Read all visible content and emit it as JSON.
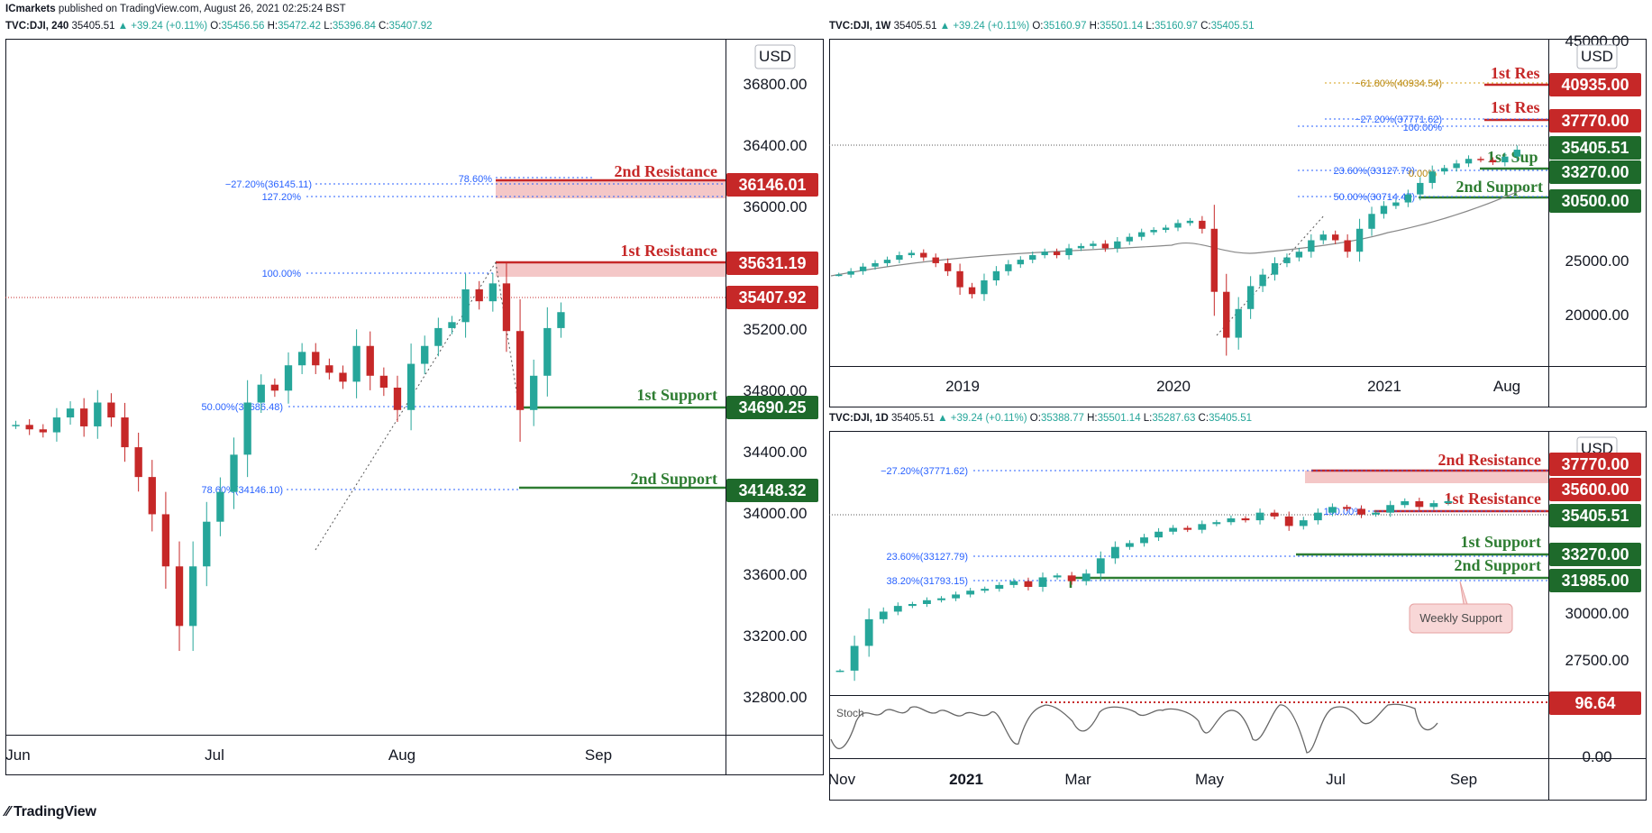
{
  "publisher": {
    "author": "ICmarkets",
    "text": "published on TradingView.com, August 26, 2021 02:25:24 BST"
  },
  "branding": {
    "logo_text": "TradingView"
  },
  "colors": {
    "up": "#26a69a",
    "down": "#c62828",
    "resistance": "#c62828",
    "support": "#2e7d32",
    "fib": "#2962ff",
    "grid": "#000000"
  },
  "panels": [
    {
      "id": "4h",
      "header": {
        "symbol": "TVC:DJI, 240",
        "price": "35405.51",
        "change": "▲ +39.24 (+0.11%)",
        "o": "35456.56",
        "h": "35472.42",
        "l": "35396.84",
        "c": "35407.92"
      },
      "currency": "USD",
      "price_ticks": [
        "36800.00",
        "36400.00",
        "36000.00",
        "35200.00",
        "34800.00",
        "34400.00",
        "34000.00",
        "33600.00",
        "33200.00",
        "32800.00"
      ],
      "time_ticks": [
        "Jun",
        "Jul",
        "Aug",
        "Sep"
      ],
      "price_tags": [
        {
          "text": "36146.01",
          "kind": "res"
        },
        {
          "text": "35631.19",
          "kind": "res"
        },
        {
          "text": "35407.92",
          "kind": "res"
        },
        {
          "text": "34690.25",
          "kind": "sup"
        },
        {
          "text": "34148.32",
          "kind": "sup"
        }
      ],
      "level_labels": [
        {
          "text": "2nd Resistance",
          "kind": "res"
        },
        {
          "text": "1st Resistance",
          "kind": "res"
        },
        {
          "text": "1st Support",
          "kind": "sup"
        },
        {
          "text": "2nd Support",
          "kind": "sup"
        }
      ],
      "fib_labels": [
        "78.60%",
        "−27.20%(36145.11)",
        "127.20%",
        "100.00%",
        "50.00%(34686.48)",
        "78.60%(34146.10)"
      ]
    },
    {
      "id": "1w",
      "header": {
        "symbol": "TVC:DJI, 1W",
        "price": "35405.51",
        "change": "▲ +39.24 (+0.11%)",
        "o": "35160.97",
        "h": "35501.14",
        "l": "35160.97",
        "c": "35405.51"
      },
      "currency": "USD",
      "price_ticks": [
        "45000.00",
        "25000.00",
        "20000.00"
      ],
      "time_ticks": [
        "2019",
        "2020",
        "2021",
        "Aug"
      ],
      "price_tags": [
        {
          "text": "40935.00",
          "kind": "res"
        },
        {
          "text": "37770.00",
          "kind": "res"
        },
        {
          "text": "35405.51",
          "kind": "sup"
        },
        {
          "text": "33270.00",
          "kind": "sup"
        },
        {
          "text": "30500.00",
          "kind": "sup"
        }
      ],
      "level_labels": [
        {
          "text": "1st Res",
          "kind": "res"
        },
        {
          "text": "1st Res",
          "kind": "res"
        },
        {
          "text": "1st Sup",
          "kind": "sup"
        },
        {
          "text": "2nd Support",
          "kind": "sup"
        }
      ],
      "fib_labels": [
        "−61.80%(40934.54)",
        "−27.20%(37771.62)",
        "100.00%",
        "23.60%(33127.79)",
        "0.00%",
        "50.00%(30714.47)"
      ]
    },
    {
      "id": "1d",
      "header": {
        "symbol": "TVC:DJI, 1D",
        "price": "35405.51",
        "change": "▲ +39.24 (+0.11%)",
        "o": "35388.77",
        "h": "35501.14",
        "l": "35287.63",
        "c": "35405.51"
      },
      "currency": "USD",
      "price_ticks": [
        "30000.00",
        "27500.00",
        "0.00"
      ],
      "time_ticks": [
        "Nov",
        "2021",
        "Mar",
        "May",
        "Jul",
        "Sep"
      ],
      "price_tags": [
        {
          "text": "37770.00",
          "kind": "res"
        },
        {
          "text": "35600.00",
          "kind": "res"
        },
        {
          "text": "35405.51",
          "kind": "sup"
        },
        {
          "text": "33270.00",
          "kind": "sup"
        },
        {
          "text": "31985.00",
          "kind": "sup"
        },
        {
          "text": "96.64",
          "kind": "res"
        }
      ],
      "level_labels": [
        {
          "text": "2nd Resistance",
          "kind": "res"
        },
        {
          "text": "1st Resistance",
          "kind": "res"
        },
        {
          "text": "1st Support",
          "kind": "sup"
        },
        {
          "text": "2nd Support",
          "kind": "sup"
        }
      ],
      "fib_labels": [
        "−27.20%(37771.62)",
        "100.00%",
        "23.60%(33127.79)",
        "38.20%(31793.15)"
      ],
      "callout": "Weekly Support",
      "indicator_label": "Stoch"
    }
  ],
  "chart_data": [
    {
      "type": "candlestick",
      "title": "TVC:DJI, 240",
      "ylim": [
        32600,
        37200
      ],
      "x_ticks": [
        "Jun",
        "Jul",
        "Aug",
        "Sep"
      ],
      "levels": [
        {
          "name": "2nd Resistance",
          "value": 36146.01
        },
        {
          "name": "1st Resistance",
          "value": 35631.19
        },
        {
          "name": "1st Support",
          "value": 34690.25
        },
        {
          "name": "2nd Support",
          "value": 34148.32
        }
      ],
      "last_price": 35407.92,
      "closes": [
        34650,
        34620,
        34600,
        34700,
        34760,
        34640,
        34800,
        34700,
        34500,
        34300,
        34050,
        33700,
        33300,
        33700,
        34000,
        34200,
        34450,
        34800,
        34920,
        34880,
        35050,
        35140,
        35050,
        35000,
        34940,
        35180,
        34980,
        34900,
        34750,
        35060,
        35180,
        35300,
        35340,
        35560,
        35480,
        35600,
        35280,
        34750,
        34980,
        35300,
        35407
      ]
    },
    {
      "type": "candlestick",
      "title": "TVC:DJI, 1W",
      "ylim": [
        17000,
        45000
      ],
      "x_ticks": [
        "2019",
        "2020",
        "2021",
        "Aug"
      ],
      "levels": [
        {
          "name": "1st Resistance (upper)",
          "value": 40935
        },
        {
          "name": "1st Resistance",
          "value": 37770
        },
        {
          "name": "1st Support",
          "value": 33270
        },
        {
          "name": "2nd Support",
          "value": 30500
        }
      ],
      "last_price": 35405.51,
      "closes": [
        24500,
        24800,
        25200,
        25500,
        25800,
        26200,
        26400,
        26000,
        25500,
        24800,
        23400,
        22800,
        24000,
        24800,
        25400,
        25800,
        26200,
        26500,
        26200,
        26800,
        27000,
        27200,
        26800,
        27400,
        27800,
        28200,
        28400,
        28600,
        29000,
        29200,
        28500,
        23000,
        19000,
        21500,
        23500,
        24500,
        25500,
        26000,
        26500,
        27500,
        28000,
        27500,
        26500,
        28500,
        29800,
        30500,
        30800,
        31500,
        32500,
        33500,
        33800,
        34200,
        34600,
        34500,
        34300,
        34800,
        35400
      ]
    },
    {
      "type": "candlestick",
      "title": "TVC:DJI, 1D",
      "ylim": [
        25500,
        39000
      ],
      "x_ticks": [
        "Nov",
        "2021",
        "Mar",
        "May",
        "Jul",
        "Sep"
      ],
      "levels": [
        {
          "name": "2nd Resistance",
          "value": 37770
        },
        {
          "name": "1st Resistance",
          "value": 35600
        },
        {
          "name": "1st Support",
          "value": 33270
        },
        {
          "name": "2nd Support",
          "value": 31985
        }
      ],
      "last_price": 35405.51,
      "closes": [
        26500,
        27800,
        29200,
        29600,
        29900,
        30000,
        30200,
        30300,
        30500,
        30700,
        30800,
        31000,
        31200,
        30900,
        31400,
        31500,
        31200,
        31600,
        32400,
        33000,
        33200,
        33500,
        33800,
        34000,
        33900,
        34200,
        34300,
        34500,
        34400,
        34800,
        34600,
        34100,
        34400,
        34800,
        35100,
        35000,
        34700,
        34800,
        35200,
        35400,
        35100,
        35300,
        35405
      ],
      "stochastic_level": 96.64
    }
  ]
}
